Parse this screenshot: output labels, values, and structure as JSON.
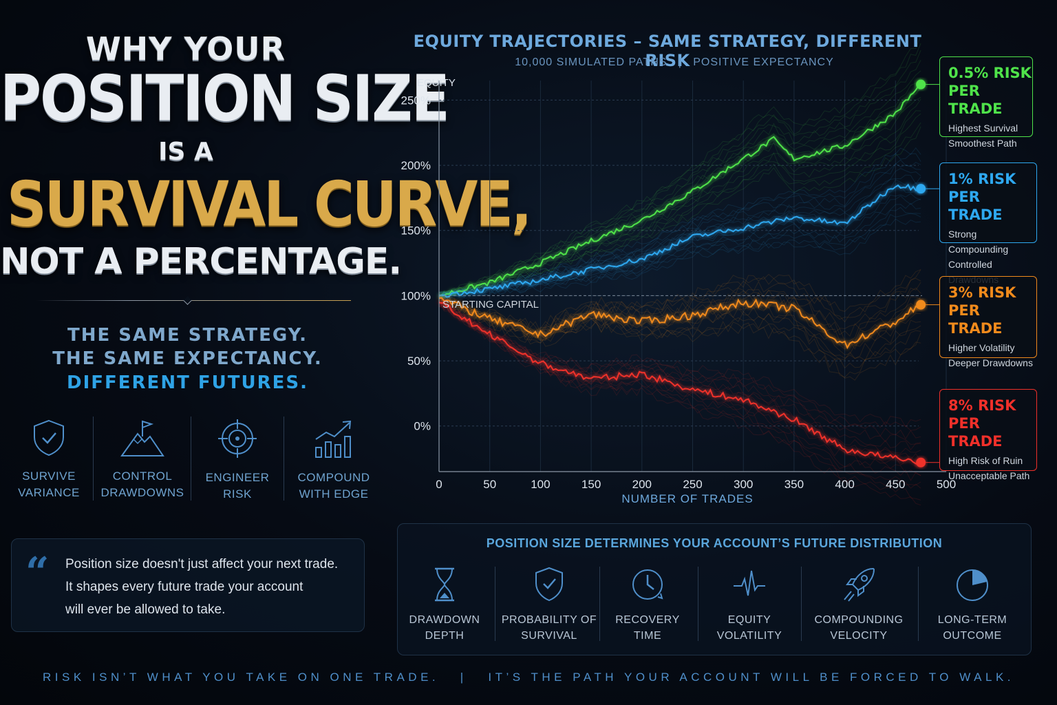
{
  "headline": {
    "line1": "WHY YOUR",
    "line2": "POSITION SIZE",
    "line3": "IS A",
    "line4": "SURVIVAL CURVE,",
    "line5": "NOT A PERCENTAGE."
  },
  "taglines": [
    "THE SAME STRATEGY.",
    "THE SAME EXPECTANCY.",
    "DIFFERENT FUTURES."
  ],
  "left_icons": [
    {
      "icon": "shield-check-icon",
      "line1": "SURVIVE",
      "line2": "VARIANCE"
    },
    {
      "icon": "mountain-flag-icon",
      "line1": "CONTROL",
      "line2": "DRAWDOWNS"
    },
    {
      "icon": "target-icon",
      "line1": "ENGINEER",
      "line2": "RISK"
    },
    {
      "icon": "growth-chart-icon",
      "line1": "COMPOUND",
      "line2": "WITH EDGE"
    }
  ],
  "quote": {
    "mark": "“",
    "line1": "Position size doesn't just affect your next trade.",
    "line2": "It shapes every future trade your account",
    "line3": "will ever be allowed to take."
  },
  "chart_data": {
    "type": "line",
    "title": "EQUITY TRAJECTORIES – SAME STRATEGY, DIFFERENT RISK",
    "subtitle": "10,000 SIMULATED PATHS   |   POSITIVE EXPECTANCY",
    "xlabel": "NUMBER OF TRADES",
    "ylabel": "EQUITY",
    "xlim": [
      0,
      500
    ],
    "ylim": [
      -35,
      265
    ],
    "xticks": [
      "0",
      "50",
      "100",
      "150",
      "200",
      "250",
      "300",
      "350",
      "400",
      "450",
      "500"
    ],
    "yticks": [
      {
        "value": 250,
        "label": "250%"
      },
      {
        "value": 200,
        "label": "200%"
      },
      {
        "value": 150,
        "label": "150%"
      },
      {
        "value": 100,
        "label": "100%"
      },
      {
        "value": 50,
        "label": "50%"
      },
      {
        "value": 0,
        "label": "0%"
      }
    ],
    "baseline": {
      "value": 100,
      "label": "STARTING CAPITAL"
    },
    "grid": true,
    "series": [
      {
        "name": "0.5% RISK PER TRADE",
        "color": "#4fe34a",
        "x": [
          0,
          50,
          100,
          150,
          200,
          250,
          300,
          330,
          340,
          350,
          400,
          450,
          475
        ],
        "y": [
          100,
          110,
          125,
          142,
          158,
          180,
          205,
          220,
          212,
          205,
          215,
          240,
          262
        ]
      },
      {
        "name": "1% RISK PER TRADE",
        "color": "#2ea8f0",
        "x": [
          0,
          50,
          100,
          150,
          200,
          250,
          300,
          350,
          400,
          450,
          475
        ],
        "y": [
          100,
          105,
          112,
          120,
          128,
          145,
          152,
          160,
          155,
          185,
          182
        ]
      },
      {
        "name": "3% RISK PER TRADE",
        "color": "#f08a1c",
        "x": [
          0,
          50,
          100,
          150,
          200,
          250,
          300,
          350,
          400,
          450,
          475
        ],
        "y": [
          98,
          82,
          70,
          86,
          80,
          85,
          95,
          90,
          62,
          80,
          93
        ]
      },
      {
        "name": "8% RISK PER TRADE",
        "color": "#f0302a",
        "x": [
          0,
          50,
          100,
          150,
          200,
          250,
          300,
          350,
          400,
          450,
          475
        ],
        "y": [
          95,
          70,
          48,
          36,
          40,
          28,
          20,
          5,
          -18,
          -25,
          -28
        ]
      }
    ]
  },
  "callouts": [
    {
      "title1": "0.5% RISK",
      "title2": "PER TRADE",
      "desc1": "Highest Survival",
      "desc2": "Smoothest Path",
      "color": "#4fe34a"
    },
    {
      "title1": "1% RISK",
      "title2": "PER TRADE",
      "desc1": "Strong Compounding",
      "desc2": "Controlled Drawdowns",
      "color": "#2ea8f0"
    },
    {
      "title1": "3% RISK",
      "title2": "PER TRADE",
      "desc1": "Higher Volatility",
      "desc2": "Deeper Drawdowns",
      "color": "#f08a1c"
    },
    {
      "title1": "8% RISK",
      "title2": "PER TRADE",
      "desc1": "High Risk of Ruin",
      "desc2": "Unacceptable Path",
      "color": "#f0302a"
    }
  ],
  "panel": {
    "title": "POSITION SIZE DETERMINES YOUR ACCOUNT’S FUTURE DISTRIBUTION",
    "items": [
      {
        "icon": "hourglass-icon",
        "line1": "DRAWDOWN",
        "line2": "DEPTH"
      },
      {
        "icon": "shield-check-icon",
        "line1": "PROBABILITY OF",
        "line2": "SURVIVAL"
      },
      {
        "icon": "clock-icon",
        "line1": "RECOVERY",
        "line2": "TIME"
      },
      {
        "icon": "pulse-icon",
        "line1": "EQUITY",
        "line2": "VOLATILITY"
      },
      {
        "icon": "rocket-icon",
        "line1": "COMPOUNDING",
        "line2": "VELOCITY"
      },
      {
        "icon": "pie-icon",
        "line1": "LONG-TERM",
        "line2": "OUTCOME"
      }
    ]
  },
  "footer": "RISK ISN’T WHAT YOU TAKE ON ONE TRADE.   |   IT’S THE PATH YOUR ACCOUNT WILL BE FORCED TO WALK."
}
